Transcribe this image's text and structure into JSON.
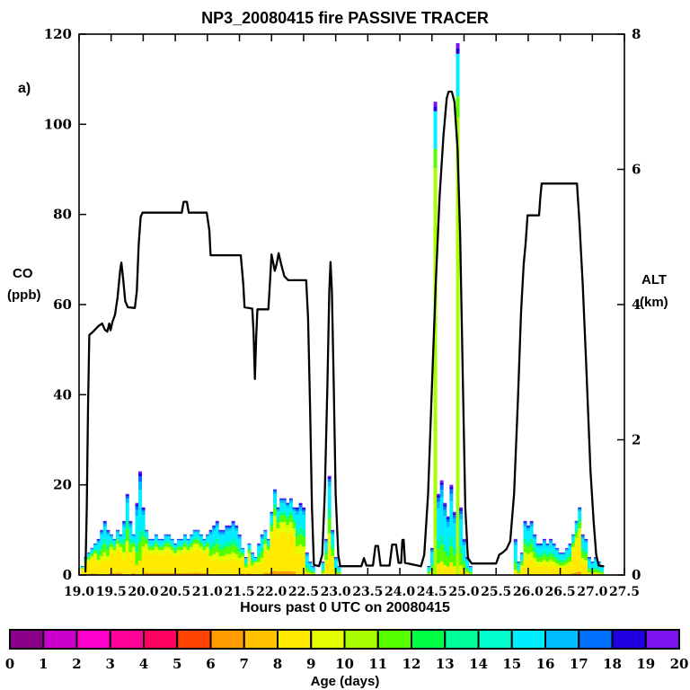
{
  "panel_label": "a)",
  "chart_data": {
    "type": "composite",
    "title": "NP3_20080415 fire PASSIVE TRACER",
    "grid": false,
    "x": {
      "label": "Hours past 0 UTC on 20080415",
      "min": 19.0,
      "max": 27.5,
      "ticks": [
        19.0,
        19.5,
        20.0,
        20.5,
        21.0,
        21.5,
        22.0,
        22.5,
        23.0,
        23.5,
        24.0,
        24.5,
        25.0,
        25.5,
        26.0,
        26.5,
        27.0,
        27.5
      ]
    },
    "y_left": {
      "label1": "CO",
      "label2": "(ppb)",
      "min": 0,
      "max": 120,
      "ticks": [
        0,
        20,
        40,
        60,
        80,
        100,
        120
      ]
    },
    "y_right": {
      "label1": "ALT",
      "label2": "(km)",
      "min": 0,
      "max": 8,
      "ticks": [
        0,
        2,
        4,
        6,
        8
      ]
    },
    "series": [
      {
        "name": "aircraft-altitude",
        "type": "line",
        "axis": "right",
        "color": "#000000",
        "points": [
          [
            19.1,
            0.05
          ],
          [
            19.12,
            1.0
          ],
          [
            19.14,
            2.5
          ],
          [
            19.16,
            3.55
          ],
          [
            19.22,
            3.6
          ],
          [
            19.3,
            3.68
          ],
          [
            19.36,
            3.72
          ],
          [
            19.4,
            3.63
          ],
          [
            19.44,
            3.6
          ],
          [
            19.47,
            3.72
          ],
          [
            19.49,
            3.62
          ],
          [
            19.52,
            3.74
          ],
          [
            19.56,
            3.85
          ],
          [
            19.6,
            4.1
          ],
          [
            19.64,
            4.5
          ],
          [
            19.66,
            4.62
          ],
          [
            19.69,
            4.35
          ],
          [
            19.72,
            4.05
          ],
          [
            19.76,
            3.96
          ],
          [
            19.87,
            3.95
          ],
          [
            19.9,
            4.2
          ],
          [
            19.93,
            4.9
          ],
          [
            19.96,
            5.3
          ],
          [
            19.99,
            5.36
          ],
          [
            20.3,
            5.36
          ],
          [
            20.6,
            5.36
          ],
          [
            20.63,
            5.52
          ],
          [
            20.68,
            5.52
          ],
          [
            20.71,
            5.36
          ],
          [
            20.99,
            5.36
          ],
          [
            21.03,
            5.1
          ],
          [
            21.05,
            4.73
          ],
          [
            21.52,
            4.73
          ],
          [
            21.56,
            4.3
          ],
          [
            21.58,
            3.96
          ],
          [
            21.7,
            3.94
          ],
          [
            21.72,
            3.6
          ],
          [
            21.74,
            2.9
          ],
          [
            21.76,
            3.5
          ],
          [
            21.78,
            3.93
          ],
          [
            21.95,
            3.93
          ],
          [
            21.98,
            4.4
          ],
          [
            22.0,
            4.74
          ],
          [
            22.03,
            4.6
          ],
          [
            22.05,
            4.5
          ],
          [
            22.08,
            4.6
          ],
          [
            22.11,
            4.76
          ],
          [
            22.15,
            4.6
          ],
          [
            22.2,
            4.42
          ],
          [
            22.26,
            4.36
          ],
          [
            22.54,
            4.36
          ],
          [
            22.57,
            3.8
          ],
          [
            22.6,
            2.5
          ],
          [
            22.63,
            1.0
          ],
          [
            22.66,
            0.15
          ],
          [
            22.74,
            0.13
          ],
          [
            22.79,
            0.3
          ],
          [
            22.83,
            1.2
          ],
          [
            22.87,
            2.8
          ],
          [
            22.9,
            4.2
          ],
          [
            22.92,
            4.63
          ],
          [
            22.94,
            4.2
          ],
          [
            22.97,
            2.8
          ],
          [
            23.0,
            1.2
          ],
          [
            23.04,
            0.3
          ],
          [
            23.07,
            0.13
          ],
          [
            23.4,
            0.13
          ],
          [
            23.44,
            0.25
          ],
          [
            23.48,
            0.14
          ],
          [
            23.58,
            0.14
          ],
          [
            23.62,
            0.43
          ],
          [
            23.66,
            0.43
          ],
          [
            23.7,
            0.14
          ],
          [
            23.84,
            0.14
          ],
          [
            23.88,
            0.45
          ],
          [
            23.94,
            0.45
          ],
          [
            23.98,
            0.18
          ],
          [
            24.02,
            0.18
          ],
          [
            24.04,
            0.52
          ],
          [
            24.06,
            0.52
          ],
          [
            24.08,
            0.18
          ],
          [
            24.33,
            0.13
          ],
          [
            24.38,
            0.3
          ],
          [
            24.44,
            1.2
          ],
          [
            24.5,
            2.8
          ],
          [
            24.56,
            4.3
          ],
          [
            24.62,
            5.6
          ],
          [
            24.68,
            6.5
          ],
          [
            24.73,
            7.05
          ],
          [
            24.76,
            7.15
          ],
          [
            24.81,
            7.15
          ],
          [
            24.85,
            7.0
          ],
          [
            24.9,
            6.3
          ],
          [
            24.94,
            5.0
          ],
          [
            24.98,
            3.0
          ],
          [
            25.02,
            1.0
          ],
          [
            25.06,
            0.25
          ],
          [
            25.12,
            0.17
          ],
          [
            25.5,
            0.17
          ],
          [
            25.55,
            0.3
          ],
          [
            25.6,
            0.33
          ],
          [
            25.66,
            0.38
          ],
          [
            25.72,
            0.5
          ],
          [
            25.78,
            1.2
          ],
          [
            25.84,
            2.6
          ],
          [
            25.89,
            3.9
          ],
          [
            25.93,
            4.6
          ],
          [
            25.96,
            4.9
          ],
          [
            25.99,
            5.32
          ],
          [
            26.17,
            5.32
          ],
          [
            26.19,
            5.6
          ],
          [
            26.21,
            5.79
          ],
          [
            26.76,
            5.79
          ],
          [
            26.8,
            5.2
          ],
          [
            26.85,
            4.3
          ],
          [
            26.9,
            3.2
          ],
          [
            26.97,
            1.55
          ],
          [
            27.02,
            0.8
          ],
          [
            27.06,
            0.3
          ],
          [
            27.1,
            0.14
          ],
          [
            27.17,
            0.13
          ]
        ]
      },
      {
        "name": "co-by-age-stacked",
        "type": "stacked-bar",
        "axis": "left",
        "bin_width": 0.05,
        "profiles": {
          "y": [
            [
              7,
              0.05
            ],
            [
              9,
              0.52
            ],
            [
              10,
              0.12
            ],
            [
              12,
              0.09
            ],
            [
              14,
              0.05
            ],
            [
              16,
              0.11
            ],
            [
              17,
              0.03
            ],
            [
              18,
              0.02
            ],
            [
              19,
              0.01
            ]
          ],
          "g": [
            [
              9,
              0.3
            ],
            [
              10,
              0.12
            ],
            [
              12,
              0.15
            ],
            [
              14,
              0.1
            ],
            [
              16,
              0.22
            ],
            [
              17,
              0.05
            ],
            [
              18,
              0.03
            ],
            [
              19,
              0.02
            ],
            [
              20,
              0.01
            ]
          ],
          "c": [
            [
              9,
              0.14
            ],
            [
              12,
              0.18
            ],
            [
              14,
              0.1
            ],
            [
              16,
              0.4
            ],
            [
              17,
              0.08
            ],
            [
              18,
              0.05
            ],
            [
              19,
              0.03
            ],
            [
              20,
              0.02
            ]
          ],
          "s": [
            [
              11,
              0.86
            ],
            [
              12,
              0.04
            ],
            [
              16,
              0.08
            ],
            [
              19,
              0.01
            ],
            [
              20,
              0.01
            ]
          ]
        },
        "segments": [
          {
            "start": 19.05,
            "totals": [
              2,
              4,
              5,
              6,
              7,
              8,
              10,
              12,
              10,
              9,
              8,
              10,
              9,
              12,
              18,
              12,
              9,
              16,
              23,
              15,
              10,
              8,
              8,
              9,
              8,
              8,
              9,
              9,
              8,
              7,
              8,
              8,
              9,
              8,
              9,
              10,
              10,
              9,
              8,
              9,
              10,
              11,
              12,
              10,
              10,
              11,
              11,
              12,
              11,
              9,
              6,
              4,
              7,
              5,
              4,
              7,
              9,
              10,
              8,
              14,
              19,
              15,
              17,
              17,
              16,
              17,
              15,
              15,
              16,
              15,
              5,
              3,
              2
            ],
            "profiles": "yyyyyggggyyyygggyccgyyyyyyyyyyyyyyyyyyyyggggggggggygygyggyyyyyyyyyygggccc"
          },
          {
            "start": 22.8,
            "totals": [
              3,
              8,
              22,
              10,
              4,
              2
            ],
            "profiles": "cgggcc"
          },
          {
            "start": 24.45,
            "totals": [
              2,
              6,
              105,
              18,
              21,
              16,
              13,
              20,
              14,
              118,
              15,
              8,
              4,
              2
            ],
            "profiles": "ccsccccccscccc"
          },
          {
            "start": 25.8,
            "totals": [
              8,
              3,
              5,
              12,
              11,
              12,
              9,
              7,
              7,
              8,
              7,
              8,
              7,
              6,
              5,
              5,
              6,
              7,
              9,
              12,
              15,
              9,
              8,
              4,
              3,
              4,
              3,
              2
            ],
            "profiles": "ccggggggggggggggggyyyggccccc"
          }
        ]
      }
    ],
    "legend": {
      "label": "Age (days)",
      "position": "bottom",
      "tick_labels": [
        0,
        1,
        2,
        3,
        4,
        5,
        6,
        7,
        8,
        9,
        10,
        11,
        12,
        13,
        14,
        15,
        16,
        17,
        18,
        19,
        20
      ],
      "colors": [
        "#8b008b",
        "#cc00cc",
        "#ff00cc",
        "#ff0099",
        "#ff0061",
        "#ff4500",
        "#ff9c00",
        "#ffc100",
        "#ffea00",
        "#e3ff00",
        "#a8ff00",
        "#55ff00",
        "#00ff44",
        "#00ff99",
        "#00ffcc",
        "#00eeff",
        "#00bbff",
        "#0070ff",
        "#2000e0",
        "#7b12f0"
      ]
    }
  }
}
